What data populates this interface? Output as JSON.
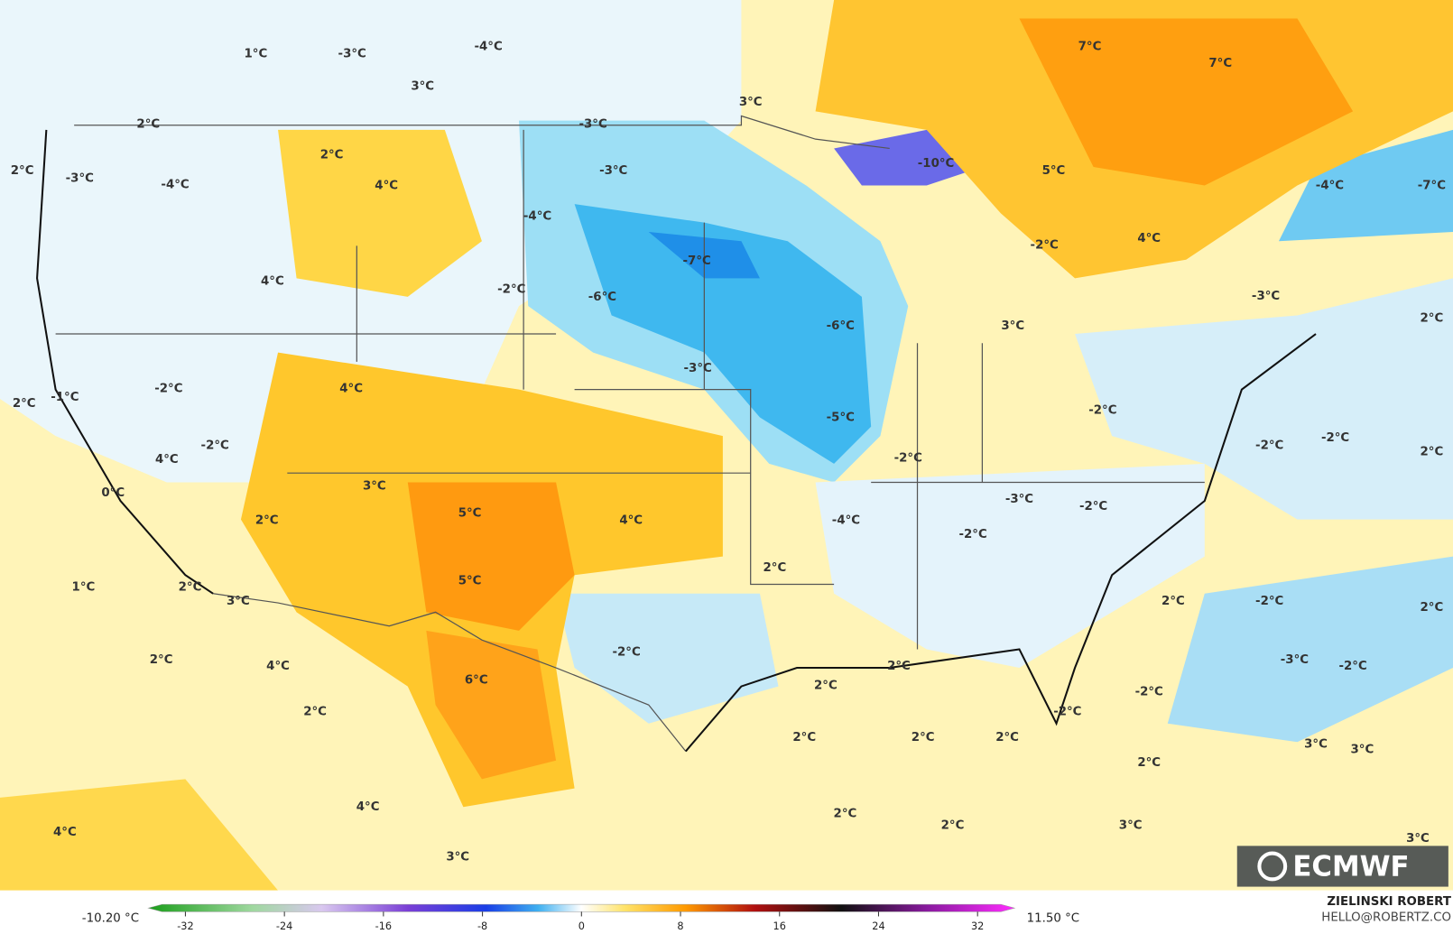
{
  "map": {
    "labels": [
      "1°C",
      "-3°C",
      "-4°C",
      "7°C",
      "7°C",
      "3°C",
      "3°C",
      "2°C",
      "-3°C",
      "2°C",
      "-3°C",
      "-10°C",
      "5°C",
      "2°C",
      "-3°C",
      "-4°C",
      "4°C",
      "-4°C",
      "-7°C",
      "-4°C",
      "4°C",
      "-2°C",
      "-7°C",
      "4°C",
      "-2°C",
      "-6°C",
      "-3°C",
      "-6°C",
      "3°C",
      "2°C",
      "-3°C",
      "-2°C",
      "4°C",
      "2°C",
      "-1°C",
      "-2°C",
      "-5°C",
      "-2°C",
      "-2°C",
      "-2°C",
      "2°C",
      "4°C",
      "-2°C",
      "3°C",
      "0°C",
      "-3°C",
      "-2°C",
      "5°C",
      "2°C",
      "4°C",
      "-4°C",
      "-2°C",
      "2°C",
      "1°C",
      "2°C",
      "5°C",
      "3°C",
      "2°C",
      "-2°C",
      "2°C",
      "-2°C",
      "2°C",
      "4°C",
      "2°C",
      "-3°C",
      "-2°C",
      "2°C",
      "6°C",
      "-2°C",
      "2°C",
      "-2°C",
      "2°C",
      "2°C",
      "2°C",
      "3°C",
      "3°C",
      "2°C",
      "4°C",
      "2°C",
      "4°C",
      "2°C",
      "3°C",
      "3°C",
      "3°C"
    ]
  },
  "colorbar": {
    "min_label": "-10.20 °C",
    "max_label": "11.50 °C",
    "range": [
      -35,
      35
    ],
    "ticks": [
      -32,
      -24,
      -16,
      -8,
      0,
      8,
      16,
      24,
      32
    ]
  },
  "credit": {
    "author": "ZIELINSKI ROBERT",
    "contact": "HELLO@ROBERTZ.CO",
    "logo": "ECMWF"
  }
}
